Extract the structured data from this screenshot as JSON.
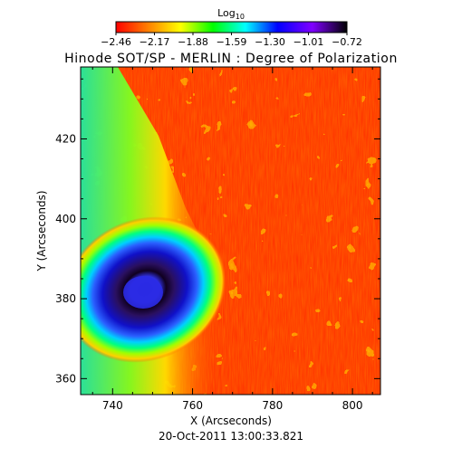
{
  "chart_data": {
    "type": "heatmap",
    "title": "Hinode SOT/SP - MERLIN : Degree of Polarization",
    "xlabel": "X (Arcseconds)",
    "ylabel": "Y (Arcseconds)",
    "xlim": [
      732,
      807
    ],
    "ylim": [
      356,
      438
    ],
    "x_ticks": [
      740,
      760,
      780,
      800
    ],
    "y_ticks": [
      360,
      380,
      400,
      420
    ],
    "timestamp": "20-Oct-2011 13:00:33.821",
    "colorbar": {
      "title": "Log",
      "title_subscript": "10",
      "range": [
        -2.46,
        -0.72
      ],
      "tick_labels": [
        "−2.46",
        "−2.17",
        "−1.88",
        "−1.59",
        "−1.30",
        "−1.01",
        "−0.72"
      ],
      "colormap": [
        "#ff0000",
        "#ff8000",
        "#ffff00",
        "#00ff00",
        "#00ffff",
        "#0000ff",
        "#8000ff",
        "#000000"
      ]
    },
    "features": [
      {
        "name": "sunspot-umbra",
        "x": 748,
        "y": 382,
        "value": -0.9
      },
      {
        "name": "sunspot-penumbra",
        "x": 750,
        "y": 382,
        "value": -1.3
      },
      {
        "name": "plage-background",
        "value": -2.4
      }
    ]
  }
}
